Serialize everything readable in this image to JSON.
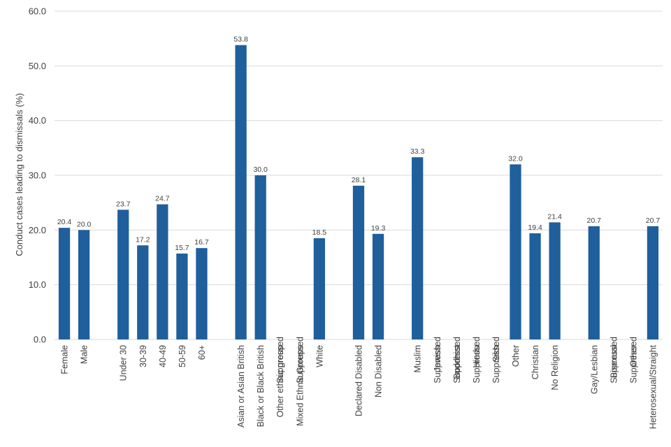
{
  "chart_data": {
    "type": "bar",
    "ylabel": "Conduct cases leading to dismissals (%)",
    "ylim": [
      0,
      60
    ],
    "yticks": [
      "0.0",
      "10.0",
      "20.0",
      "30.0",
      "40.0",
      "50.0",
      "60.0"
    ],
    "grid": true,
    "bar_color": "#1f5f9c",
    "groups": [
      {
        "categories": [
          "Female",
          "Male"
        ],
        "values": [
          20.4,
          20.0
        ],
        "labels": [
          "20.4",
          "20.0"
        ]
      },
      {
        "categories": [
          "Under 30",
          "30-39",
          "40-49",
          "50-59",
          "60+"
        ],
        "values": [
          23.7,
          17.2,
          24.7,
          15.7,
          16.7
        ],
        "labels": [
          "23.7",
          "17.2",
          "24.7",
          "15.7",
          "16.7"
        ]
      },
      {
        "categories": [
          "Asian or Asian British",
          "Black or Black British",
          "Other ethnic group",
          "Mixed Ethnic Groups",
          "White"
        ],
        "values": [
          53.8,
          30.0,
          null,
          null,
          18.5
        ],
        "labels": [
          "53.8",
          "30.0",
          "Suppressed",
          "Suppressed",
          "18.5"
        ]
      },
      {
        "categories": [
          "Declared Disabled",
          "Non Disabled"
        ],
        "values": [
          28.1,
          19.3
        ],
        "labels": [
          "28.1",
          "19.3"
        ]
      },
      {
        "categories": [
          "Muslim",
          "Jewish",
          "Buddhist",
          "Hindu",
          "Sikh",
          "Other",
          "Christian",
          "No Religion"
        ],
        "values": [
          33.3,
          null,
          null,
          null,
          null,
          32.0,
          19.4,
          21.4
        ],
        "labels": [
          "33.3",
          "Suppressed",
          "Suppressed",
          "Suppressed",
          "Suppressed",
          "32.0",
          "19.4",
          "21.4"
        ]
      },
      {
        "categories": [
          "Gay/Lesbian",
          "Bisexual",
          "Other",
          "Heterosexual/Straight"
        ],
        "values": [
          20.7,
          null,
          null,
          20.7
        ],
        "labels": [
          "20.7",
          "Suppressed",
          "Suppressed",
          "20.7"
        ]
      }
    ]
  }
}
